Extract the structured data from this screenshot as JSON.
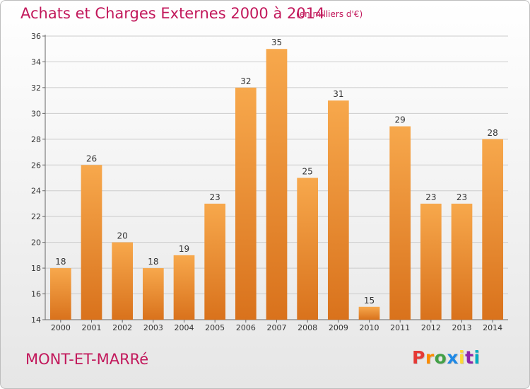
{
  "header": {
    "title": "Achats et Charges Externes 2000 à 2014",
    "unit": "(en milliers d'€)"
  },
  "footer": {
    "place": "MONT-ET-MARRé",
    "logo_text": "Proxiti",
    "logo_colors": [
      "#e53935",
      "#fb8c00",
      "#43a047",
      "#1e88e5",
      "#fdd835",
      "#8e24aa",
      "#00acc1"
    ]
  },
  "colors": {
    "bar_light": "#f7a84c",
    "bar_dark": "#d9721c",
    "title": "#c2185b",
    "grid": "#cccccc",
    "axis_text": "#333333"
  },
  "chart_data": {
    "type": "bar",
    "title": "Achats et Charges Externes 2000 à 2014",
    "subtitle": "(en milliers d'€)",
    "xlabel": "",
    "ylabel": "",
    "categories": [
      "2000",
      "2001",
      "2002",
      "2003",
      "2004",
      "2005",
      "2006",
      "2007",
      "2008",
      "2009",
      "2010",
      "2011",
      "2012",
      "2013",
      "2014"
    ],
    "values": [
      18,
      26,
      20,
      18,
      19,
      23,
      32,
      35,
      25,
      31,
      15,
      29,
      23,
      23,
      28
    ],
    "ylim": [
      14,
      36
    ],
    "yticks": [
      14,
      16,
      18,
      20,
      22,
      24,
      26,
      28,
      30,
      32,
      34,
      36
    ],
    "grid": true,
    "data_labels": true
  }
}
